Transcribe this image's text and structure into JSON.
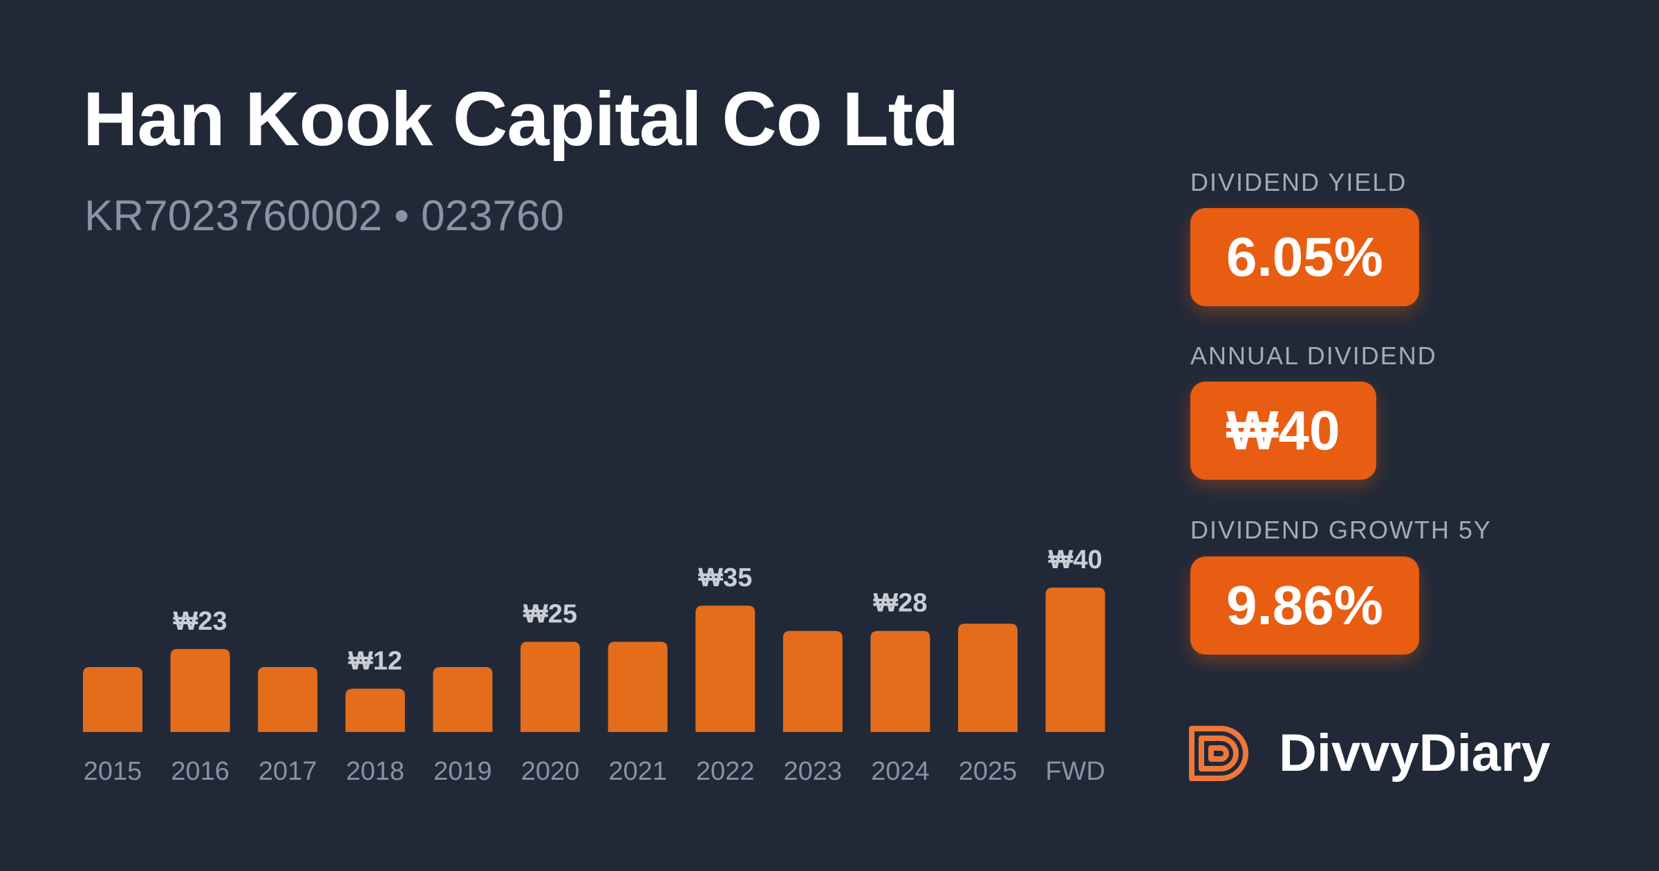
{
  "header": {
    "title": "Han Kook Capital Co Ltd",
    "subtitle": "KR7023760002 • 023760"
  },
  "stats": {
    "yield_label": "DIVIDEND YIELD",
    "yield_value": "6.05%",
    "annual_label": "ANNUAL DIVIDEND",
    "annual_value": "₩40",
    "growth_label": "DIVIDEND GROWTH 5Y",
    "growth_value": "9.86%"
  },
  "brand": {
    "name": "DivvyDiary",
    "icon": "divvydiary-logo-icon"
  },
  "colors": {
    "background": "#212938",
    "bar": "#e36d1b",
    "accent": "#e85d12"
  },
  "chart_data": {
    "type": "bar",
    "categories": [
      "2015",
      "2016",
      "2017",
      "2018",
      "2019",
      "2020",
      "2021",
      "2022",
      "2023",
      "2024",
      "2025",
      "FWD"
    ],
    "values": [
      18,
      23,
      18,
      12,
      18,
      25,
      25,
      35,
      28,
      28,
      30,
      40
    ],
    "data_labels": [
      "",
      "₩23",
      "",
      "₩12",
      "",
      "₩25",
      "",
      "₩35",
      "",
      "₩28",
      "",
      "₩40"
    ],
    "ylim": [
      0,
      40
    ],
    "grid": false
  }
}
